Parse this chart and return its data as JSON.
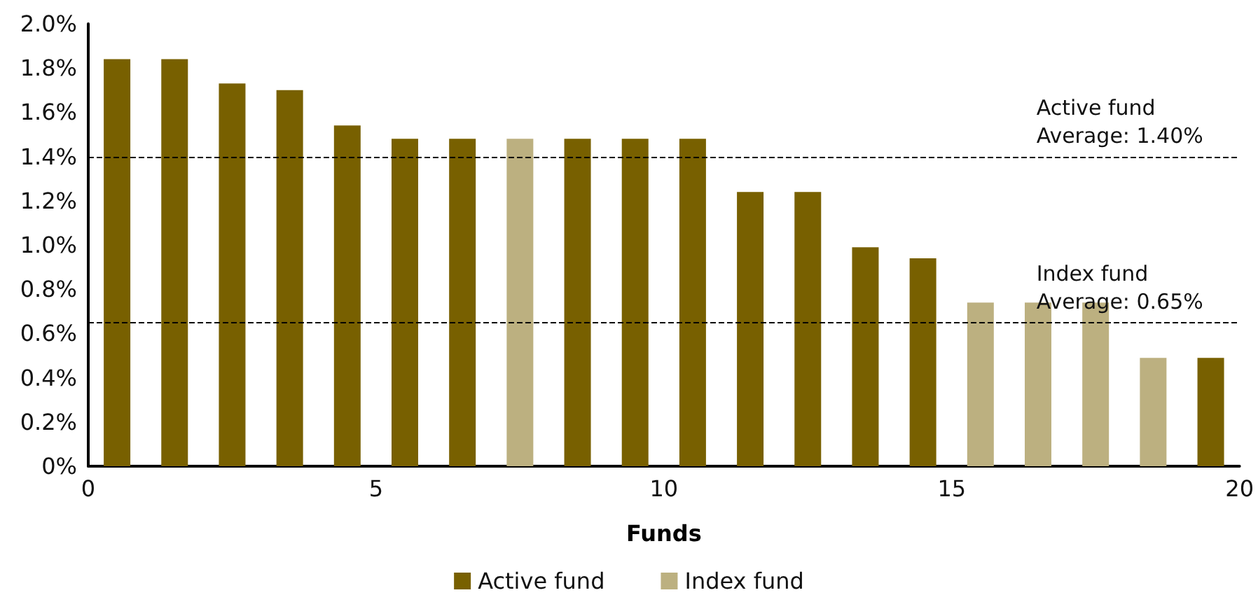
{
  "chart_data": {
    "type": "bar",
    "xlabel": "Funds",
    "xlim": [
      0,
      20
    ],
    "xticks": [
      0,
      5,
      10,
      15,
      20
    ],
    "ylim": [
      0,
      2.0
    ],
    "yticks": [
      {
        "value": 0,
        "label": "0%"
      },
      {
        "value": 0.2,
        "label": "0.2%"
      },
      {
        "value": 0.4,
        "label": "0.4%"
      },
      {
        "value": 0.6,
        "label": "0.6%"
      },
      {
        "value": 0.8,
        "label": "0.8%"
      },
      {
        "value": 1.0,
        "label": "1.0%"
      },
      {
        "value": 1.2,
        "label": "1.2%"
      },
      {
        "value": 1.4,
        "label": "1.4%"
      },
      {
        "value": 1.6,
        "label": "1.6%"
      },
      {
        "value": 1.8,
        "label": "1.8%"
      },
      {
        "value": 2.0,
        "label": "2.0%"
      }
    ],
    "series": [
      {
        "name": "Active fund",
        "color": "#786000",
        "x": [
          0.5,
          1.5,
          2.5,
          3.5,
          4.5,
          5.5,
          6.5,
          8.5,
          9.5,
          10.5,
          11.5,
          12.5,
          13.5,
          14.5,
          19.5
        ],
        "values": [
          1.84,
          1.84,
          1.73,
          1.7,
          1.54,
          1.48,
          1.48,
          1.48,
          1.48,
          1.48,
          1.24,
          1.24,
          0.99,
          0.94,
          0.49
        ]
      },
      {
        "name": "Index fund",
        "color": "#bcb080",
        "x": [
          7.5,
          15.5,
          16.5,
          17.5,
          18.5
        ],
        "values": [
          1.48,
          0.74,
          0.74,
          0.74,
          0.49
        ]
      }
    ],
    "ref_lines": [
      {
        "axis": "y",
        "value": 1.4,
        "label": "Active fund\nAverage: 1.40%",
        "color": "#000000",
        "line_style": "dashed"
      },
      {
        "axis": "y",
        "value": 0.65,
        "label": "Index fund\nAverage: 0.65%",
        "color": "#000000",
        "line_style": "dashed"
      }
    ],
    "grid": false,
    "legend": "bottom"
  }
}
